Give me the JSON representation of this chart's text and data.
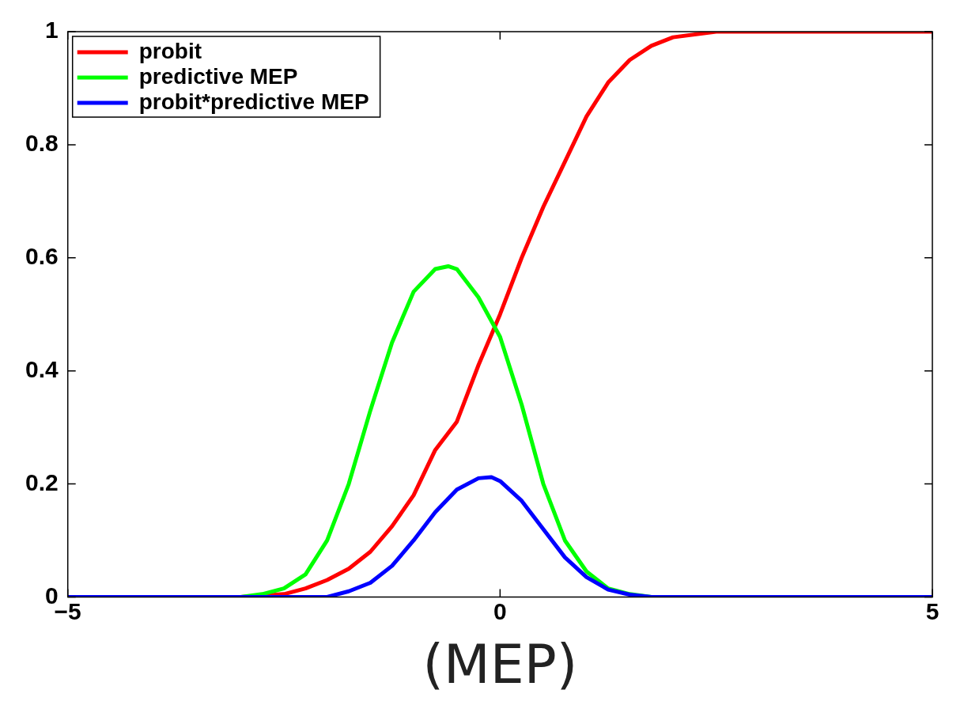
{
  "chart_data": {
    "type": "line",
    "xlabel": "(MEP)",
    "xlim": [
      -5,
      5
    ],
    "xticks": [
      {
        "value": -5,
        "label": "−5"
      },
      0,
      5
    ],
    "ylim": [
      0,
      1
    ],
    "yticks": [
      0,
      0.2,
      0.4,
      0.6,
      0.8,
      1
    ],
    "grid": false,
    "legend": "top left",
    "marker": "none",
    "line_style": "solid",
    "series": [
      {
        "name": "probit",
        "color": "#ff0000",
        "x": [
          -5,
          -3,
          -2.5,
          -2.25,
          -2,
          -1.75,
          -1.5,
          -1.25,
          -1,
          -0.75,
          -0.5,
          -0.25,
          0,
          0.25,
          0.5,
          0.75,
          1,
          1.25,
          1.5,
          1.75,
          2,
          2.5,
          5
        ],
        "values": [
          0,
          0,
          0.005,
          0.015,
          0.03,
          0.05,
          0.08,
          0.125,
          0.18,
          0.26,
          0.31,
          0.41,
          0.5,
          0.6,
          0.69,
          0.77,
          0.85,
          0.91,
          0.95,
          0.975,
          0.99,
          1,
          1
        ]
      },
      {
        "name": "predictive MEP",
        "color": "#00ff00",
        "x": [
          -5,
          -3,
          -2.75,
          -2.5,
          -2.25,
          -2,
          -1.75,
          -1.5,
          -1.25,
          -1,
          -0.75,
          -0.6,
          -0.5,
          -0.25,
          0,
          0.25,
          0.5,
          0.75,
          1,
          1.25,
          1.5,
          1.75,
          5
        ],
        "values": [
          0,
          0,
          0.005,
          0.015,
          0.04,
          0.1,
          0.2,
          0.33,
          0.45,
          0.54,
          0.58,
          0.585,
          0.58,
          0.53,
          0.46,
          0.34,
          0.2,
          0.1,
          0.045,
          0.015,
          0.005,
          0,
          0
        ]
      },
      {
        "name": "probit*predictive MEP",
        "color": "#0000ff",
        "x": [
          -5,
          -2,
          -1.75,
          -1.5,
          -1.25,
          -1,
          -0.75,
          -0.5,
          -0.25,
          -0.1,
          0,
          0.25,
          0.5,
          0.75,
          1,
          1.25,
          1.5,
          1.75,
          5
        ],
        "values": [
          0,
          0,
          0.01,
          0.025,
          0.055,
          0.1,
          0.15,
          0.19,
          0.21,
          0.212,
          0.205,
          0.17,
          0.12,
          0.07,
          0.035,
          0.013,
          0.004,
          0,
          0
        ]
      }
    ]
  }
}
